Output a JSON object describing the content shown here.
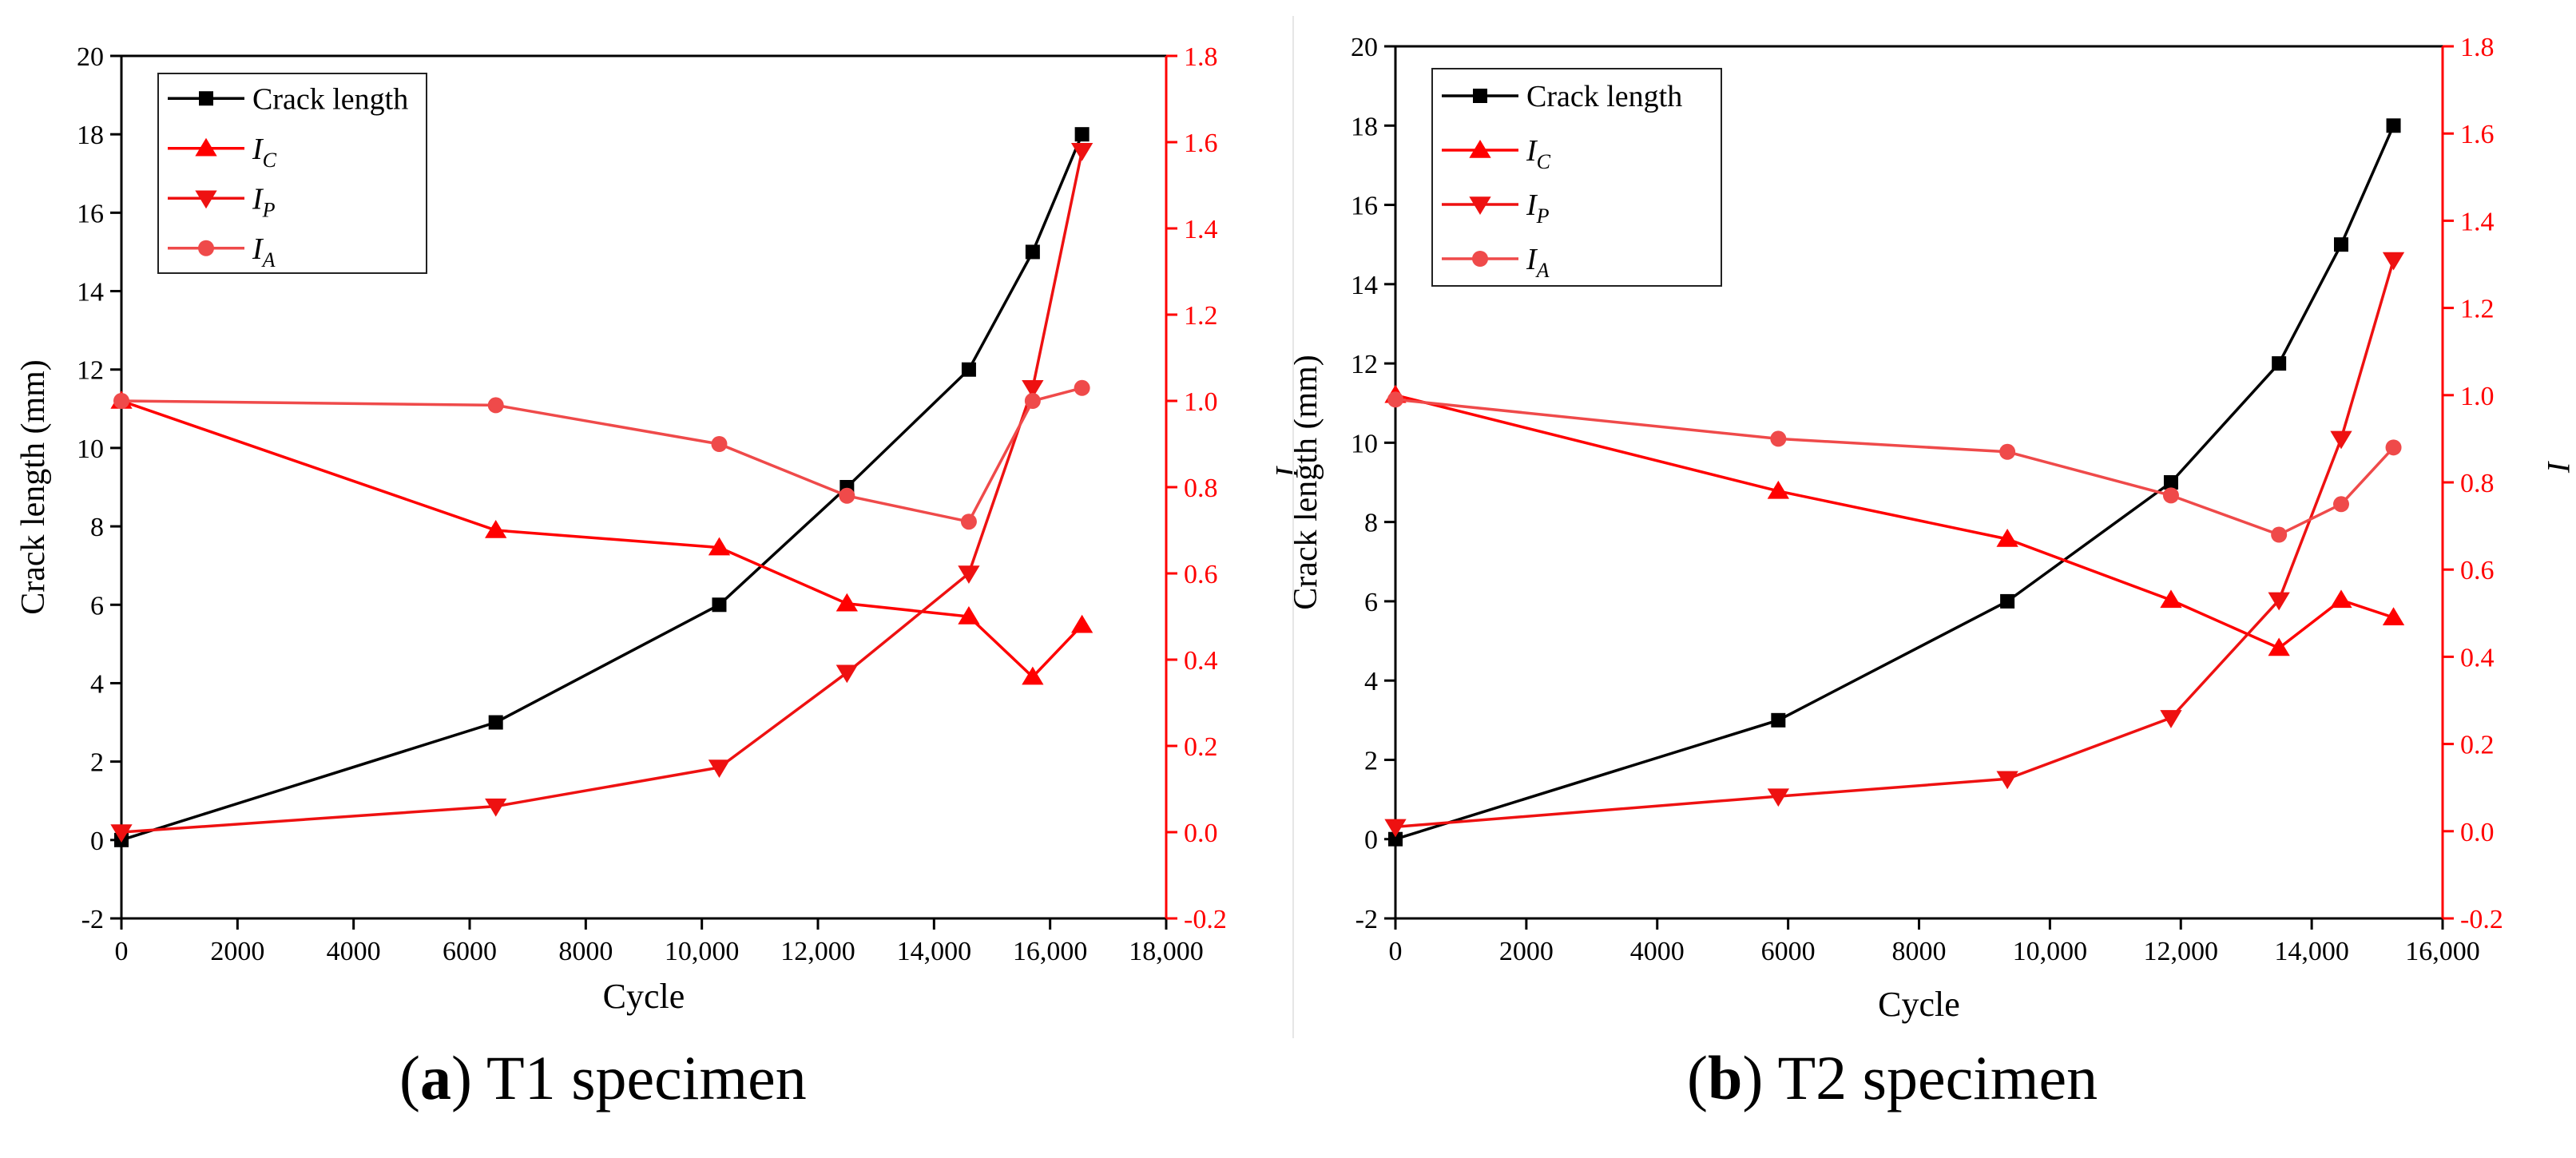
{
  "colors": {
    "crack": "#000000",
    "ic": "#ff0000",
    "ip": "#ee1111",
    "ia": "#ef4a4a",
    "right_axis": "#ff0000",
    "axis": "#000000"
  },
  "captions": [
    {
      "letter": "a",
      "text": " T1 specimen"
    },
    {
      "letter": "b",
      "text": " T2 specimen"
    }
  ],
  "chart_data": [
    {
      "type": "line",
      "id": "T1",
      "xlabel": "Cycle",
      "ylabel": "Crack length (mm)",
      "y2label": "I",
      "xlim": [
        0,
        18000
      ],
      "ylim": [
        -2,
        20
      ],
      "y2lim": [
        -0.2,
        1.8
      ],
      "xticks": [
        0,
        2000,
        4000,
        6000,
        8000,
        10000,
        12000,
        14000,
        16000,
        18000
      ],
      "xtick_labels": [
        "0",
        "2000",
        "4000",
        "6000",
        "8000",
        "10,000",
        "12,000",
        "14,000",
        "16,000",
        "18,000"
      ],
      "yticks": [
        -2,
        0,
        2,
        4,
        6,
        8,
        10,
        12,
        14,
        16,
        18,
        20
      ],
      "ytick_labels": [
        "-2",
        "0",
        "2",
        "4",
        "6",
        "8",
        "10",
        "12",
        "14",
        "16",
        "18",
        "20"
      ],
      "y2ticks": [
        -0.2,
        0.0,
        0.2,
        0.4,
        0.6,
        0.8,
        1.0,
        1.2,
        1.4,
        1.6,
        1.8
      ],
      "y2tick_labels": [
        "-0.2",
        "0.0",
        "0.2",
        "0.4",
        "0.6",
        "0.8",
        "1.0",
        "1.2",
        "1.4",
        "1.6",
        "1.8"
      ],
      "legend_position": "top-left",
      "series": [
        {
          "name": "Crack length",
          "sub": "",
          "axis": "left",
          "marker": "square",
          "color": "#000000",
          "x": [
            0,
            6450,
            10300,
            12500,
            14600,
            15700,
            16550
          ],
          "y": [
            0,
            3,
            6,
            9,
            12,
            15,
            18
          ]
        },
        {
          "name": "I",
          "sub": "C",
          "axis": "right",
          "marker": "triangle-up",
          "color": "#ff0000",
          "x": [
            0,
            6450,
            10300,
            12500,
            14600,
            15700,
            16550
          ],
          "y": [
            1.0,
            0.7,
            0.66,
            0.53,
            0.5,
            0.36,
            0.48
          ]
        },
        {
          "name": "I",
          "sub": "P",
          "axis": "right",
          "marker": "triangle-down",
          "color": "#ee1111",
          "x": [
            0,
            6450,
            10300,
            12500,
            14600,
            15700,
            16550
          ],
          "y": [
            0.0,
            0.06,
            0.15,
            0.37,
            0.6,
            1.03,
            1.58
          ]
        },
        {
          "name": "I",
          "sub": "A",
          "axis": "right",
          "marker": "circle",
          "color": "#ef4a4a",
          "x": [
            0,
            6450,
            10300,
            12500,
            14600,
            15700,
            16550
          ],
          "y": [
            1.0,
            0.99,
            0.9,
            0.78,
            0.72,
            1.0,
            1.03
          ]
        }
      ]
    },
    {
      "type": "line",
      "id": "T2",
      "xlabel": "Cycle",
      "ylabel": "Crack length (mm)",
      "y2label": "I",
      "xlim": [
        0,
        16000
      ],
      "ylim": [
        -2,
        20
      ],
      "y2lim": [
        -0.2,
        1.8
      ],
      "xticks": [
        0,
        2000,
        4000,
        6000,
        8000,
        10000,
        12000,
        14000,
        16000
      ],
      "xtick_labels": [
        "0",
        "2000",
        "4000",
        "6000",
        "8000",
        "10,000",
        "12,000",
        "14,000",
        "16,000"
      ],
      "yticks": [
        -2,
        0,
        2,
        4,
        6,
        8,
        10,
        12,
        14,
        16,
        18,
        20
      ],
      "ytick_labels": [
        "-2",
        "0",
        "2",
        "4",
        "6",
        "8",
        "10",
        "12",
        "14",
        "16",
        "18",
        "20"
      ],
      "y2ticks": [
        -0.2,
        0.0,
        0.2,
        0.4,
        0.6,
        0.8,
        1.0,
        1.2,
        1.4,
        1.6,
        1.8
      ],
      "y2tick_labels": [
        "-0.2",
        "0.0",
        "0.2",
        "0.4",
        "0.6",
        "0.8",
        "1.0",
        "1.2",
        "1.4",
        "1.6",
        "1.8"
      ],
      "legend_position": "top-left",
      "series": [
        {
          "name": "Crack length",
          "sub": "",
          "axis": "left",
          "marker": "square",
          "color": "#000000",
          "x": [
            0,
            5850,
            9350,
            11850,
            13500,
            14450,
            15250
          ],
          "y": [
            0,
            3,
            6,
            9,
            12,
            15,
            18
          ]
        },
        {
          "name": "I",
          "sub": "C",
          "axis": "right",
          "marker": "triangle-up",
          "color": "#ff0000",
          "x": [
            0,
            5850,
            9350,
            11850,
            13500,
            14450,
            15250
          ],
          "y": [
            1.0,
            0.78,
            0.67,
            0.53,
            0.42,
            0.53,
            0.49
          ]
        },
        {
          "name": "I",
          "sub": "P",
          "axis": "right",
          "marker": "triangle-down",
          "color": "#ee1111",
          "x": [
            0,
            5850,
            9350,
            11850,
            13500,
            14450,
            15250
          ],
          "y": [
            0.01,
            0.08,
            0.12,
            0.26,
            0.53,
            0.9,
            1.31
          ]
        },
        {
          "name": "I",
          "sub": "A",
          "axis": "right",
          "marker": "circle",
          "color": "#ef4a4a",
          "x": [
            0,
            5850,
            9350,
            11850,
            13500,
            14450,
            15250
          ],
          "y": [
            0.99,
            0.9,
            0.87,
            0.77,
            0.68,
            0.75,
            0.88
          ]
        }
      ]
    }
  ]
}
